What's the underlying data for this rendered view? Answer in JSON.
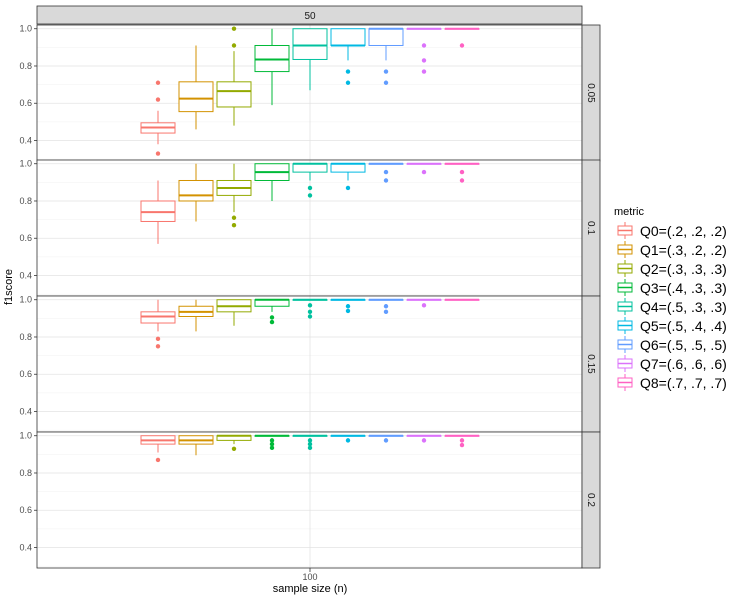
{
  "chart_data": {
    "type": "boxplot",
    "xlabel": "sample size (n)",
    "ylabel": "f1score",
    "x_tick": "100",
    "column_facet": "50",
    "y_ticks": [
      "0.4",
      "0.6",
      "0.8",
      "1.0"
    ],
    "ylim": [
      0.29,
      1.02
    ],
    "legend_title": "metric",
    "series": [
      {
        "name": "Q0=(.2, .2, .2)",
        "color": "#F8766D"
      },
      {
        "name": "Q1=(.3, .2, .2)",
        "color": "#D39200"
      },
      {
        "name": "Q2=(.3, .3, .3)",
        "color": "#93AA00"
      },
      {
        "name": "Q3=(.4, .3, .3)",
        "color": "#00BA38"
      },
      {
        "name": "Q4=(.5, .3, .3)",
        "color": "#00C19F"
      },
      {
        "name": "Q5=(.5, .4, .4)",
        "color": "#00B9E3"
      },
      {
        "name": "Q6=(.5, .5, .5)",
        "color": "#619CFF"
      },
      {
        "name": "Q7=(.6, .6, .6)",
        "color": "#DB72FB"
      },
      {
        "name": "Q8=(.7, .7, .7)",
        "color": "#FF61C3"
      }
    ],
    "panels": [
      {
        "label": "0.05",
        "boxes": [
          {
            "lw": 0.38,
            "q1": 0.44,
            "med": 0.47,
            "q3": 0.495,
            "uw": 0.56,
            "out": [
              0.62,
              0.71,
              0.33
            ]
          },
          {
            "lw": 0.46,
            "q1": 0.555,
            "med": 0.625,
            "q3": 0.715,
            "uw": 0.91,
            "out": []
          },
          {
            "lw": 0.48,
            "q1": 0.58,
            "med": 0.665,
            "q3": 0.715,
            "uw": 0.88,
            "out": [
              0.91,
              1.0
            ]
          },
          {
            "lw": 0.59,
            "q1": 0.77,
            "med": 0.835,
            "q3": 0.91,
            "uw": 1.0,
            "out": []
          },
          {
            "lw": 0.67,
            "q1": 0.835,
            "med": 0.91,
            "q3": 1.0,
            "uw": 1.0,
            "out": []
          },
          {
            "lw": 0.83,
            "q1": 0.91,
            "med": 0.91,
            "q3": 1.0,
            "uw": 1.0,
            "out": [
              0.77,
              0.71
            ]
          },
          {
            "lw": 0.83,
            "q1": 0.91,
            "med": 1.0,
            "q3": 1.0,
            "uw": 1.0,
            "out": [
              0.77,
              0.71
            ]
          },
          {
            "lw": 1.0,
            "q1": 1.0,
            "med": 1.0,
            "q3": 1.0,
            "uw": 1.0,
            "out": [
              0.91,
              0.83,
              0.77
            ]
          },
          {
            "lw": 1.0,
            "q1": 1.0,
            "med": 1.0,
            "q3": 1.0,
            "uw": 1.0,
            "out": [
              0.91
            ]
          }
        ]
      },
      {
        "label": "0.1",
        "boxes": [
          {
            "lw": 0.57,
            "q1": 0.69,
            "med": 0.74,
            "q3": 0.8,
            "uw": 0.91,
            "out": []
          },
          {
            "lw": 0.69,
            "q1": 0.8,
            "med": 0.83,
            "q3": 0.91,
            "uw": 1.0,
            "out": []
          },
          {
            "lw": 0.74,
            "q1": 0.83,
            "med": 0.87,
            "q3": 0.91,
            "uw": 1.0,
            "out": [
              0.71,
              0.67
            ]
          },
          {
            "lw": 0.8,
            "q1": 0.91,
            "med": 0.955,
            "q3": 1.0,
            "uw": 1.0,
            "out": []
          },
          {
            "lw": 0.91,
            "q1": 0.955,
            "med": 1.0,
            "q3": 1.0,
            "uw": 1.0,
            "out": [
              0.87,
              0.83
            ]
          },
          {
            "lw": 0.91,
            "q1": 0.955,
            "med": 1.0,
            "q3": 1.0,
            "uw": 1.0,
            "out": [
              0.87
            ]
          },
          {
            "lw": 1.0,
            "q1": 1.0,
            "med": 1.0,
            "q3": 1.0,
            "uw": 1.0,
            "out": [
              0.955,
              0.91
            ]
          },
          {
            "lw": 1.0,
            "q1": 1.0,
            "med": 1.0,
            "q3": 1.0,
            "uw": 1.0,
            "out": [
              0.955
            ]
          },
          {
            "lw": 1.0,
            "q1": 1.0,
            "med": 1.0,
            "q3": 1.0,
            "uw": 1.0,
            "out": [
              0.955,
              0.91
            ]
          }
        ]
      },
      {
        "label": "0.15",
        "boxes": [
          {
            "lw": 0.83,
            "q1": 0.875,
            "med": 0.91,
            "q3": 0.935,
            "uw": 1.0,
            "out": [
              0.79,
              0.75
            ]
          },
          {
            "lw": 0.83,
            "q1": 0.91,
            "med": 0.935,
            "q3": 0.965,
            "uw": 1.0,
            "out": []
          },
          {
            "lw": 0.86,
            "q1": 0.935,
            "med": 0.965,
            "q3": 1.0,
            "uw": 1.0,
            "out": []
          },
          {
            "lw": 0.935,
            "q1": 0.965,
            "med": 1.0,
            "q3": 1.0,
            "uw": 1.0,
            "out": [
              0.905,
              0.88
            ]
          },
          {
            "lw": 1.0,
            "q1": 1.0,
            "med": 1.0,
            "q3": 1.0,
            "uw": 1.0,
            "out": [
              0.97,
              0.935,
              0.91
            ]
          },
          {
            "lw": 1.0,
            "q1": 1.0,
            "med": 1.0,
            "q3": 1.0,
            "uw": 1.0,
            "out": [
              0.965,
              0.94
            ]
          },
          {
            "lw": 1.0,
            "q1": 1.0,
            "med": 1.0,
            "q3": 1.0,
            "uw": 1.0,
            "out": [
              0.965,
              0.935
            ]
          },
          {
            "lw": 1.0,
            "q1": 1.0,
            "med": 1.0,
            "q3": 1.0,
            "uw": 1.0,
            "out": [
              0.97
            ]
          },
          {
            "lw": 1.0,
            "q1": 1.0,
            "med": 1.0,
            "q3": 1.0,
            "uw": 1.0,
            "out": []
          }
        ]
      },
      {
        "label": "0.2",
        "boxes": [
          {
            "lw": 0.91,
            "q1": 0.955,
            "med": 0.975,
            "q3": 1.0,
            "uw": 1.0,
            "out": [
              0.87
            ]
          },
          {
            "lw": 0.895,
            "q1": 0.955,
            "med": 0.975,
            "q3": 1.0,
            "uw": 1.0,
            "out": []
          },
          {
            "lw": 0.955,
            "q1": 0.975,
            "med": 1.0,
            "q3": 1.0,
            "uw": 1.0,
            "out": [
              0.93
            ]
          },
          {
            "lw": 1.0,
            "q1": 1.0,
            "med": 1.0,
            "q3": 1.0,
            "uw": 1.0,
            "out": [
              0.975,
              0.955,
              0.935
            ]
          },
          {
            "lw": 1.0,
            "q1": 1.0,
            "med": 1.0,
            "q3": 1.0,
            "uw": 1.0,
            "out": [
              0.975,
              0.955,
              0.935
            ]
          },
          {
            "lw": 1.0,
            "q1": 1.0,
            "med": 1.0,
            "q3": 1.0,
            "uw": 1.0,
            "out": [
              0.975
            ]
          },
          {
            "lw": 1.0,
            "q1": 1.0,
            "med": 1.0,
            "q3": 1.0,
            "uw": 1.0,
            "out": [
              0.975
            ]
          },
          {
            "lw": 1.0,
            "q1": 1.0,
            "med": 1.0,
            "q3": 1.0,
            "uw": 1.0,
            "out": [
              0.975
            ]
          },
          {
            "lw": 1.0,
            "q1": 1.0,
            "med": 1.0,
            "q3": 1.0,
            "uw": 1.0,
            "out": [
              0.975,
              0.95
            ]
          }
        ]
      }
    ]
  }
}
